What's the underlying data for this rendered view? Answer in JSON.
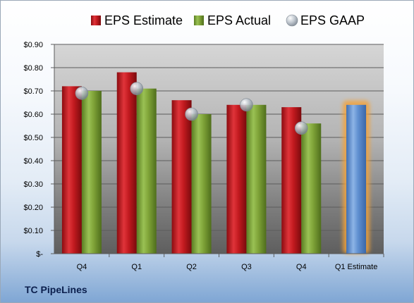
{
  "chart_data": {
    "type": "bar",
    "categories": [
      "Q4",
      "Q1",
      "Q2",
      "Q3",
      "Q4",
      "Q1 Estimate"
    ],
    "series": [
      {
        "name": "EPS Estimate",
        "kind": "bar",
        "color": "#c0161b",
        "values": [
          0.72,
          0.78,
          0.66,
          0.64,
          0.63,
          null
        ]
      },
      {
        "name": "EPS Actual",
        "kind": "bar",
        "color": "#7fa338",
        "values": [
          0.7,
          0.71,
          0.6,
          0.64,
          0.56,
          null
        ]
      },
      {
        "name": "EPS GAAP",
        "kind": "marker",
        "color": "#a8b2bd",
        "values": [
          0.69,
          0.71,
          0.6,
          0.64,
          0.54,
          null
        ]
      },
      {
        "name": "",
        "kind": "bar-highlight",
        "color": "#5f8fd0",
        "glow": "#f3a33a",
        "values": [
          null,
          null,
          null,
          null,
          null,
          0.64
        ]
      }
    ],
    "ylim": [
      0,
      0.9
    ],
    "yticks": [
      0,
      0.1,
      0.2,
      0.3,
      0.4,
      0.5,
      0.6,
      0.7,
      0.8,
      0.9
    ],
    "ytick_labels": [
      "$-",
      "$0.10",
      "$0.20",
      "$0.30",
      "$0.40",
      "$0.50",
      "$0.60",
      "$0.70",
      "$0.80",
      "$0.90"
    ],
    "grid": true,
    "legend_position": "top"
  },
  "company_name": "TC PipeLines"
}
